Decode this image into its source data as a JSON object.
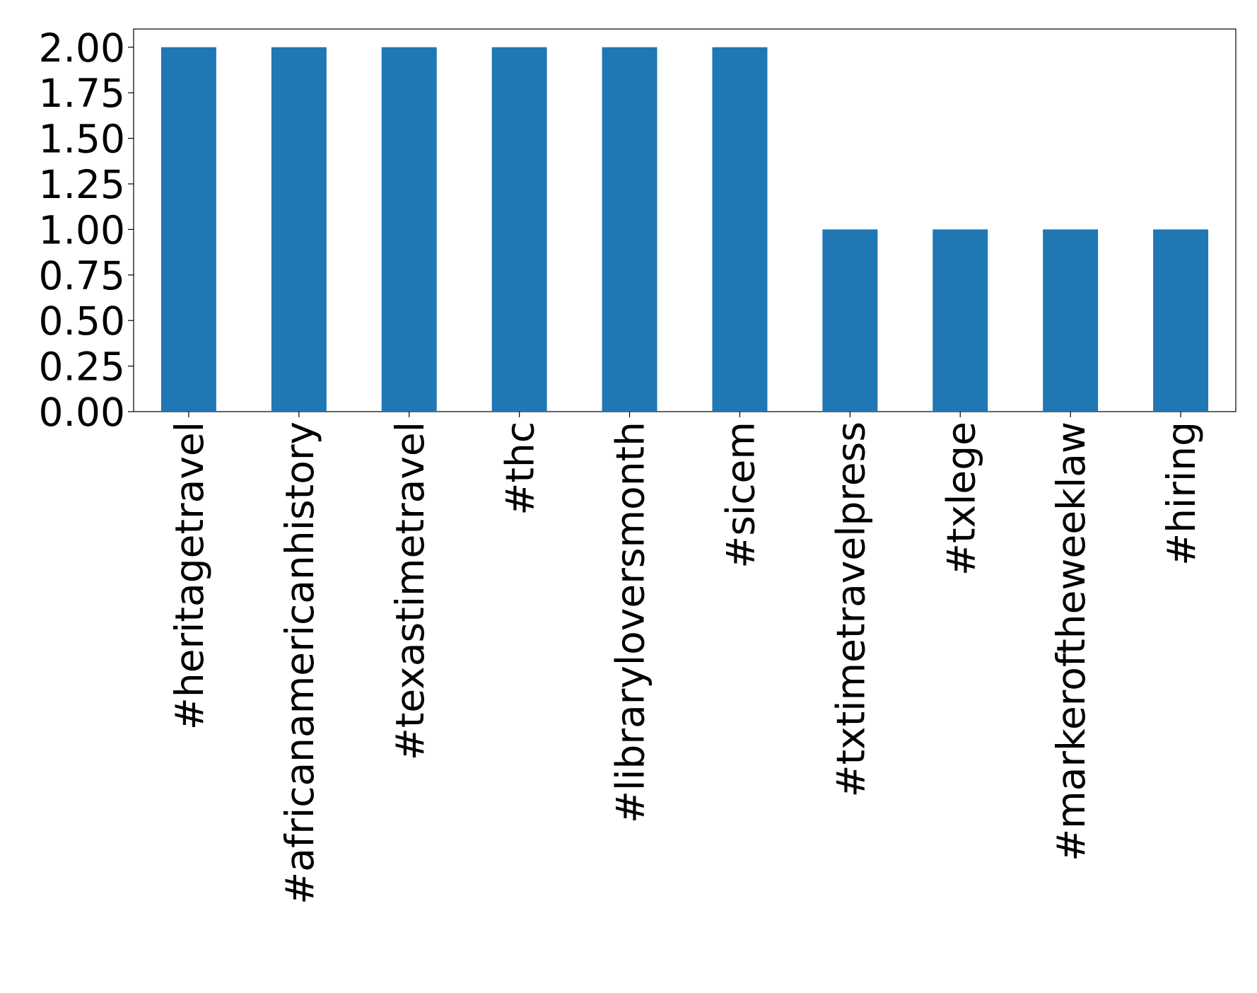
{
  "chart_data": {
    "type": "bar",
    "categories": [
      "#heritagetravel",
      "#africanamericanhistory",
      "#texastimetravel",
      "#thc",
      "#librarylovers­month",
      "#sicem",
      "#txtimetravelpress",
      "#txlege",
      "#markeroftheweeklaw",
      "#hiring"
    ],
    "values": [
      2,
      2,
      2,
      2,
      2,
      2,
      1,
      1,
      1,
      1
    ],
    "color": "#1f77b4",
    "ylim": [
      0,
      2.1
    ],
    "yticks": [
      {
        "value": 0,
        "label": "0.00"
      },
      {
        "value": 0.25,
        "label": "0.25"
      },
      {
        "value": 0.5,
        "label": "0.50"
      },
      {
        "value": 0.75,
        "label": "0.75"
      },
      {
        "value": 1,
        "label": "1.00"
      },
      {
        "value": 1.25,
        "label": "1.25"
      },
      {
        "value": 1.5,
        "label": "1.50"
      },
      {
        "value": 1.75,
        "label": "1.75"
      },
      {
        "value": 2,
        "label": "2.00"
      }
    ],
    "grid": false
  }
}
